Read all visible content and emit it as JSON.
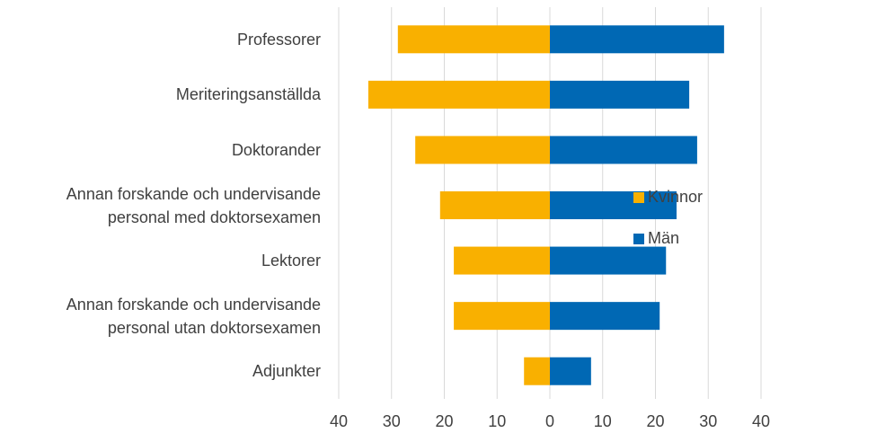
{
  "chart_data": {
    "type": "butterfly",
    "categories": [
      "Professorer",
      "Meriteringsanställda",
      "Doktorander",
      "Annan forskande och undervisande\npersonal med doktorsexamen",
      "Lektorer",
      "Annan forskande och undervisande\npersonal utan doktorsexamen",
      "Adjunkter"
    ],
    "series": [
      {
        "name": "Kvinnor",
        "color": "#f9b000",
        "values": [
          -28.8,
          -34.4,
          -25.5,
          -20.8,
          -18.2,
          -18.2,
          -4.9
        ]
      },
      {
        "name": "Män",
        "color": "#0068b4",
        "values": [
          33.0,
          26.4,
          27.9,
          24.0,
          22.0,
          20.8,
          7.8
        ]
      }
    ],
    "xlim": [
      -40,
      40
    ],
    "xticks": [
      {
        "value": -40,
        "label": "40"
      },
      {
        "value": -30,
        "label": "30"
      },
      {
        "value": -20,
        "label": "20"
      },
      {
        "value": -10,
        "label": "10"
      },
      0,
      10,
      20,
      30,
      40
    ],
    "grid": true,
    "legend": "right"
  }
}
